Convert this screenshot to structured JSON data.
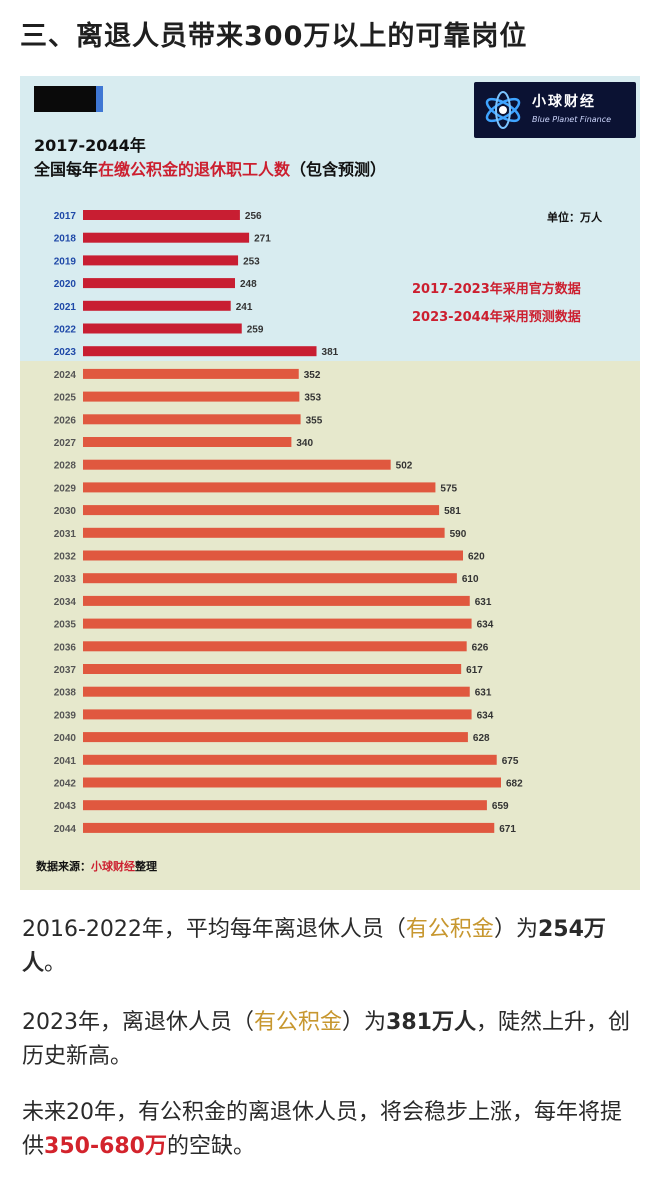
{
  "heading": "三、离退人员带来300万以上的可靠岗位",
  "logo": {
    "name": "小球财经",
    "subtitle": "Blue Planet Finance"
  },
  "chart_header": {
    "years": "2017-2044年",
    "title_pre": "全国每年",
    "title_highlight": "在缴公积金的退休职工人数",
    "title_post": "（包含预测）",
    "unit": "单位：万人",
    "note_official": "2017-2023年采用官方数据",
    "note_forecast": "2023-2044年采用预测数据",
    "source_label": "数据来源：",
    "source_name": "小球财经",
    "source_suffix": "整理"
  },
  "chart_data": {
    "type": "bar",
    "orientation": "horizontal",
    "title": "2017-2044年全国每年在缴公积金的退休职工人数（包含预测）",
    "unit": "万人",
    "categories": [
      "2017",
      "2018",
      "2019",
      "2020",
      "2021",
      "2022",
      "2023",
      "2024",
      "2025",
      "2026",
      "2027",
      "2028",
      "2029",
      "2030",
      "2031",
      "2032",
      "2033",
      "2034",
      "2035",
      "2036",
      "2037",
      "2038",
      "2039",
      "2040",
      "2041",
      "2042",
      "2043",
      "2044"
    ],
    "values": [
      256,
      271,
      253,
      248,
      241,
      259,
      381,
      352,
      353,
      355,
      340,
      502,
      575,
      581,
      590,
      620,
      610,
      631,
      634,
      626,
      617,
      631,
      634,
      628,
      675,
      682,
      659,
      671
    ],
    "series_segments": [
      {
        "name": "官方数据",
        "from": "2017",
        "to": "2023",
        "color": "#c81e32"
      },
      {
        "name": "预测数据",
        "from": "2024",
        "to": "2044",
        "color": "#e0583f"
      }
    ],
    "xlim": [
      0,
      700
    ]
  },
  "paragraphs": {
    "p1": {
      "a": "2016-2022年，平均每年离退休人员（",
      "b": "有公积金",
      "c": "）为",
      "d": "254万人",
      "e": "。"
    },
    "p2": {
      "a": "2023年，离退休人员（",
      "b": "有公积金",
      "c": "）为",
      "d": "381万人",
      "e": "，陡然上升，创历史新高。"
    },
    "p3": {
      "a": "未来20年，有公积金的离退休人员，将会稳步上涨，每年将提供",
      "b": "350-680万",
      "c": "的空缺。"
    }
  }
}
